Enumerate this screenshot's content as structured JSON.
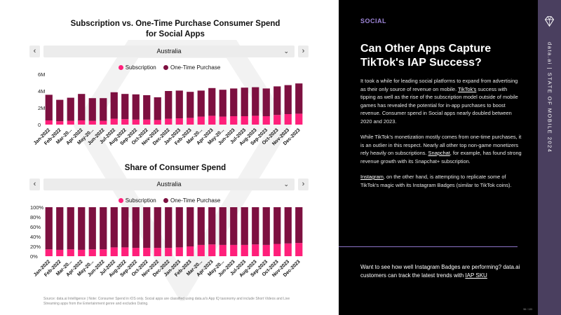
{
  "colors": {
    "subscription": "#ff1f7a",
    "one_time": "#7d1040",
    "accent": "#9f86d9",
    "band": "#4a3f5f"
  },
  "top_chart": {
    "title_line1": "Subscription vs. One-Time Purchase Consumer Spend",
    "title_line2": "for Social Apps",
    "selector": {
      "value": "Australia",
      "prev_icon": "chevron-left",
      "next_icon": "chevron-right",
      "dropdown_icon": "chevron-down"
    },
    "legend": [
      "Subscription",
      "One-Time Purchase"
    ]
  },
  "bottom_chart": {
    "title": "Share of Consumer Spend",
    "selector": {
      "value": "Australia",
      "prev_icon": "chevron-left",
      "next_icon": "chevron-right",
      "dropdown_icon": "chevron-down"
    },
    "legend": [
      "Subscription",
      "One-Time Purchase"
    ]
  },
  "chart_data": [
    {
      "type": "bar",
      "stacked": true,
      "title": "Subscription vs. One-Time Purchase Consumer Spend for Social Apps",
      "categories": [
        "Jan-2022",
        "Feb-2022",
        "Mar-20...",
        "Apr-2022",
        "May-20...",
        "Jun-2022",
        "Jul-2022",
        "Aug-2022",
        "Sep-2022",
        "Oct-2022",
        "Nov-2022",
        "Dec-2022",
        "Jan-2023",
        "Feb-2023",
        "Mar-20...",
        "Apr-2023",
        "May-20...",
        "Jun-2023",
        "Jul-2023",
        "Aug-2023",
        "Sep-2023",
        "Oct-2023",
        "Nov-2023",
        "Dec-2023"
      ],
      "series": [
        {
          "name": "Subscription",
          "values": [
            0.5,
            0.4,
            0.45,
            0.5,
            0.45,
            0.45,
            0.7,
            0.65,
            0.6,
            0.6,
            0.55,
            0.7,
            0.75,
            0.8,
            0.95,
            1.05,
            0.95,
            1.0,
            1.0,
            1.05,
            1.0,
            1.15,
            1.25,
            1.3
          ]
        },
        {
          "name": "One-Time Purchase",
          "values": [
            3.05,
            2.55,
            2.75,
            3.15,
            2.7,
            2.7,
            3.15,
            3.0,
            3.0,
            2.9,
            2.7,
            3.3,
            3.3,
            3.1,
            3.1,
            3.3,
            3.2,
            3.3,
            3.4,
            3.4,
            3.3,
            3.4,
            3.45,
            3.6
          ]
        }
      ],
      "ylim": [
        0,
        6
      ],
      "yticks": [
        "0",
        "2M",
        "4M",
        "6M"
      ],
      "legend_position": "top"
    },
    {
      "type": "bar",
      "stacked": true,
      "title": "Share of Consumer Spend",
      "categories": [
        "Jan-2022",
        "Feb-2022",
        "Mar-20...",
        "Apr-2022",
        "May-20...",
        "Jun-2022",
        "Jul-2022",
        "Aug-2022",
        "Sep-2022",
        "Oct-2022",
        "Nov-2022",
        "Dec-2022",
        "Jan-2023",
        "Feb-2023",
        "Mar-20...",
        "Apr-2023",
        "May-20...",
        "Jun-2023",
        "Jul-2023",
        "Aug-2023",
        "Sep-2023",
        "Oct-2023",
        "Nov-2023",
        "Dec-2023"
      ],
      "series": [
        {
          "name": "Subscription",
          "values": [
            14,
            13,
            14,
            13,
            14,
            14,
            18,
            18,
            17,
            17,
            17,
            17,
            18,
            20,
            23,
            24,
            23,
            23,
            23,
            24,
            23,
            25,
            26,
            27
          ]
        },
        {
          "name": "One-Time Purchase",
          "values": [
            86,
            87,
            86,
            87,
            86,
            86,
            82,
            82,
            83,
            83,
            83,
            83,
            82,
            80,
            77,
            76,
            77,
            77,
            77,
            76,
            77,
            75,
            74,
            73
          ]
        }
      ],
      "ylim": [
        0,
        100
      ],
      "yticks": [
        "0%",
        "20%",
        "40%",
        "60%",
        "80%",
        "100%"
      ],
      "legend_position": "top"
    }
  ],
  "source_note": "Source: data.ai Intelligence | Note: Consumer Spend in iOS only. Social apps are classified using data.ai's App IQ taxonomy and include Short Videos and Live Streaming apps from the Entertainment genre and excludes Dating.",
  "right_panel": {
    "section_tag": "SOCIAL",
    "headline": "Can Other Apps Capture TikTok's IAP Success?",
    "p1_link": "TikTok's",
    "p1_text": " success with tipping as well as the rise of the subscription model outside of mobile games has revealed the potential for in-app purchases to boost revenue. Consumer spend in Social apps nearly doubled between 2020 and 2023.",
    "p1_lead": "It took a while for leading social platforms to expand from advertising as their only source of revenue on mobile. ",
    "p2_lead": "While TikTok's monetization mostly comes from one-time purchases, it is an outlier in this respect. Nearly all other top non-game monetizers rely heavily on subscriptions. ",
    "p2_link": "Snapchat",
    "p2_text": ", for example, has found strong revenue growth with its Snapchat+ subscription.",
    "p3_link": "Instagram",
    "p3_text": ", on the other hand, is attempting to replicate some of TikTok's magic with its Instagram Badges (similar to TikTok coins).",
    "cta_text": "Want to see how well Instagram Badges are performing? data.ai customers can track the latest trends with ",
    "cta_link": "IAP SKU",
    "page_number": "56 / 133"
  },
  "side_band": {
    "text": "data.ai | STATE OF MOBILE 2024",
    "logo_icon": "diamond-logo"
  }
}
